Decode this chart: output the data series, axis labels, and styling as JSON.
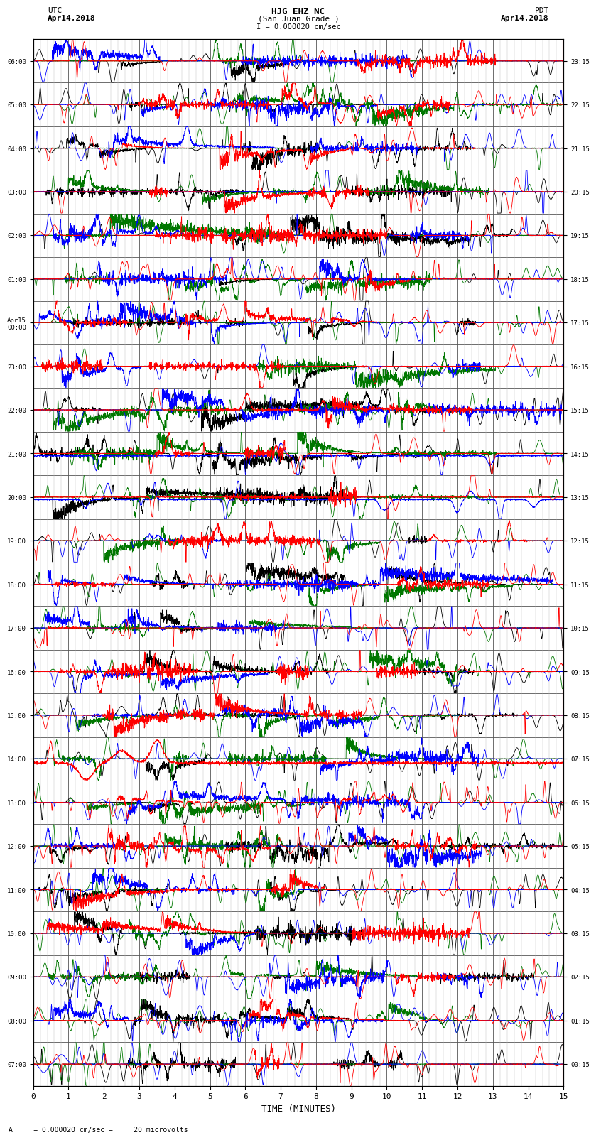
{
  "title_line1": "HJG EHZ NC",
  "title_line2": "(San Juan Grade )",
  "title_line3": "I = 0.000020 cm/sec",
  "left_label_top": "UTC",
  "left_label_date": "Apr14,2018",
  "right_label_top": "PDT",
  "right_label_date": "Apr14,2018",
  "bottom_label": "TIME (MINUTES)",
  "footnote": "A  |  = 0.000020 cm/sec =     20 microvolts",
  "xlabel_ticks": [
    0,
    1,
    2,
    3,
    4,
    5,
    6,
    7,
    8,
    9,
    10,
    11,
    12,
    13,
    14,
    15
  ],
  "left_yticks_labels": [
    "07:00",
    "08:00",
    "09:00",
    "10:00",
    "11:00",
    "12:00",
    "13:00",
    "14:00",
    "15:00",
    "16:00",
    "17:00",
    "18:00",
    "19:00",
    "20:00",
    "21:00",
    "22:00",
    "23:00",
    "Apr15\n00:00",
    "01:00",
    "02:00",
    "03:00",
    "04:00",
    "05:00",
    "06:00"
  ],
  "right_yticks_labels": [
    "00:15",
    "01:15",
    "02:15",
    "03:15",
    "04:15",
    "05:15",
    "06:15",
    "07:15",
    "08:15",
    "09:15",
    "10:15",
    "11:15",
    "12:15",
    "13:15",
    "14:15",
    "15:15",
    "16:15",
    "17:15",
    "18:15",
    "19:15",
    "20:15",
    "21:15",
    "22:15",
    "23:15"
  ],
  "bg_color": "#ffffff",
  "major_grid_color": "#555555",
  "minor_grid_color": "#bbbbbb",
  "line_colors": [
    "black",
    "#007700",
    "blue",
    "red"
  ],
  "num_rows": 24,
  "x_min": 0,
  "x_max": 15,
  "fig_width": 8.5,
  "fig_height": 16.13,
  "dpi": 100
}
